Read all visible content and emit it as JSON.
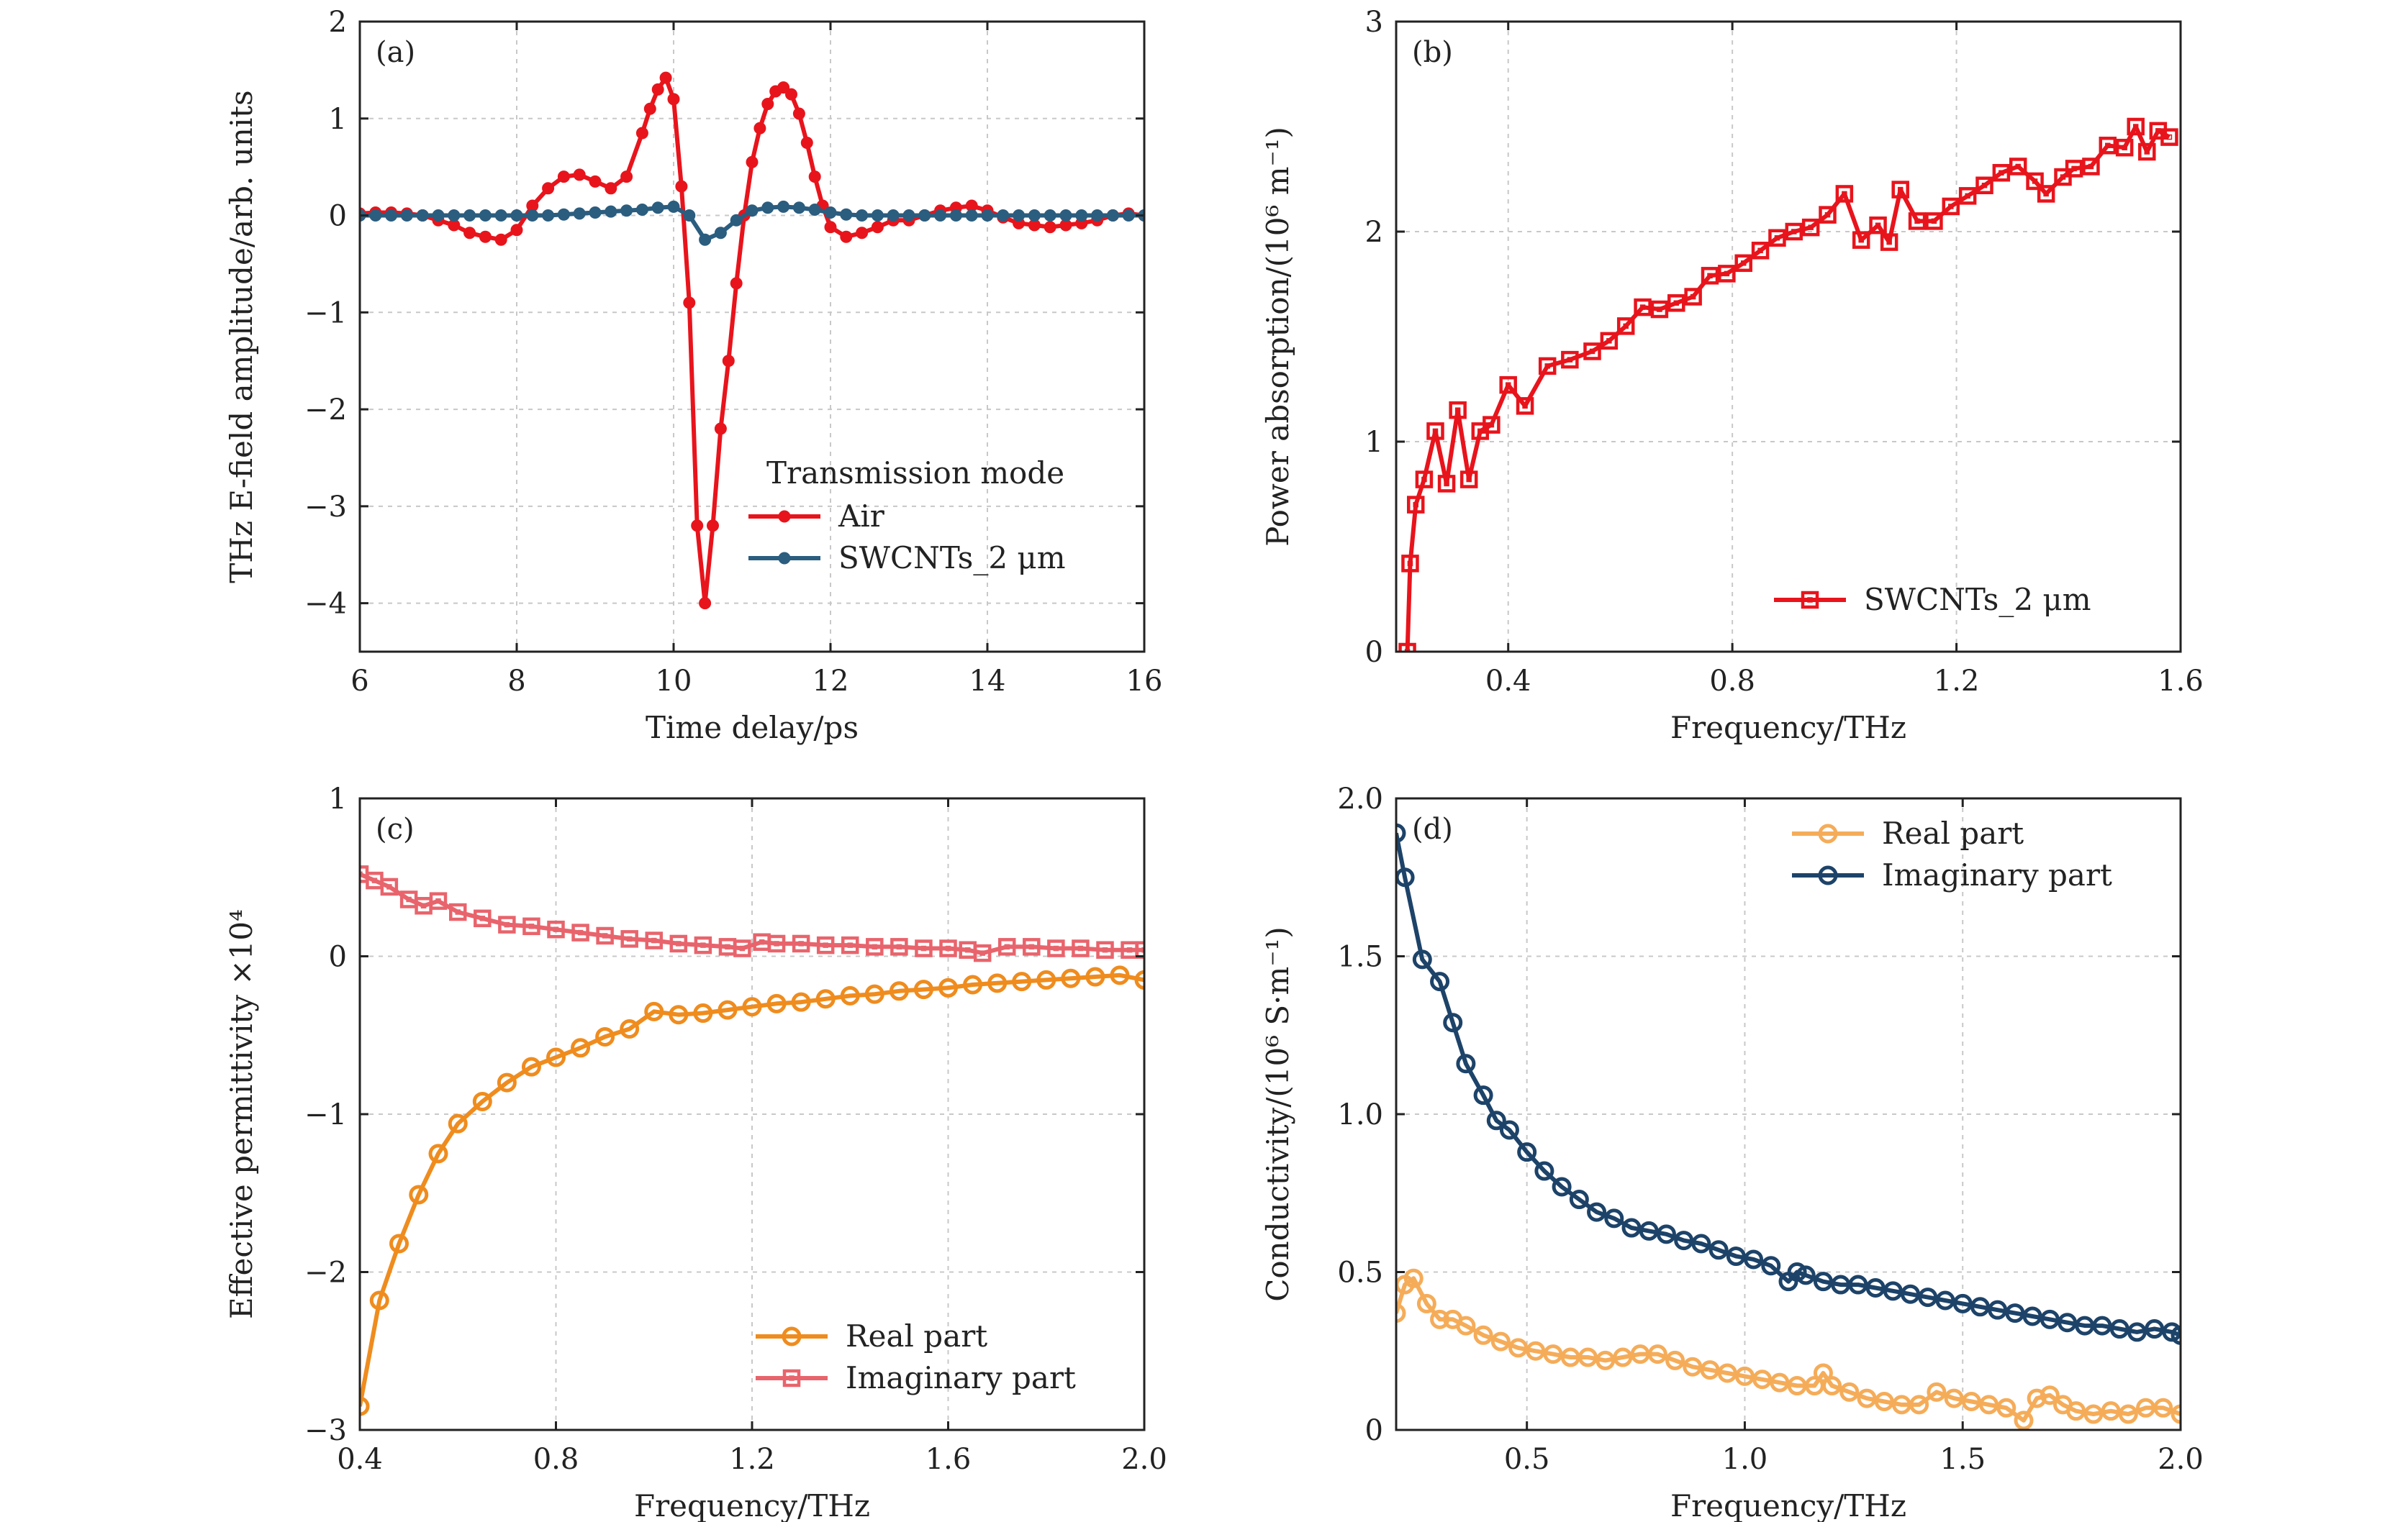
{
  "chart_data": [
    {
      "id": "a",
      "type": "line",
      "panel_label": "(a)",
      "xlabel": "Time delay/ps",
      "ylabel": "THz E-field amplitude/arb. units",
      "xlim": [
        6,
        16
      ],
      "ylim": [
        -4.5,
        2
      ],
      "xticks": [
        6,
        8,
        10,
        12,
        14,
        16
      ],
      "xtick_labels": [
        "6",
        "8",
        "10",
        "12",
        "14",
        "16"
      ],
      "yticks": [
        -4,
        -3,
        -2,
        -1,
        0,
        1,
        2
      ],
      "ytick_labels": [
        "−4",
        "−3",
        "−2",
        "−1",
        "0",
        "1",
        "2"
      ],
      "grid": true,
      "legend": {
        "title": "Transmission mode",
        "position": "bottom-right"
      },
      "series": [
        {
          "name": "Air",
          "color": "#e8141c",
          "marker": "dot",
          "x": [
            6.0,
            6.2,
            6.4,
            6.6,
            6.8,
            7.0,
            7.2,
            7.4,
            7.6,
            7.8,
            8.0,
            8.2,
            8.4,
            8.6,
            8.8,
            9.0,
            9.2,
            9.4,
            9.6,
            9.7,
            9.8,
            9.9,
            10.0,
            10.1,
            10.2,
            10.3,
            10.4,
            10.5,
            10.6,
            10.7,
            10.8,
            10.9,
            11.0,
            11.1,
            11.2,
            11.3,
            11.4,
            11.5,
            11.6,
            11.7,
            11.8,
            11.9,
            12.0,
            12.2,
            12.4,
            12.6,
            12.8,
            13.0,
            13.2,
            13.4,
            13.6,
            13.8,
            14.0,
            14.2,
            14.4,
            14.6,
            14.8,
            15.0,
            15.2,
            15.4,
            15.6,
            15.8,
            16.0
          ],
          "y": [
            0.02,
            0.03,
            0.03,
            0.02,
            0.0,
            -0.05,
            -0.1,
            -0.18,
            -0.22,
            -0.25,
            -0.15,
            0.1,
            0.28,
            0.4,
            0.42,
            0.35,
            0.28,
            0.4,
            0.85,
            1.1,
            1.3,
            1.42,
            1.2,
            0.3,
            -0.9,
            -3.2,
            -4.0,
            -3.2,
            -2.2,
            -1.5,
            -0.7,
            0.0,
            0.55,
            0.9,
            1.15,
            1.28,
            1.32,
            1.25,
            1.05,
            0.75,
            0.4,
            0.1,
            -0.12,
            -0.22,
            -0.18,
            -0.12,
            -0.05,
            -0.05,
            0.0,
            0.05,
            0.08,
            0.1,
            0.05,
            -0.02,
            -0.08,
            -0.1,
            -0.12,
            -0.1,
            -0.08,
            -0.05,
            0.0,
            0.02,
            0.0
          ]
        },
        {
          "name": "SWCNTs_2 μm",
          "color": "#2b5d7f",
          "marker": "dot",
          "x": [
            6.0,
            6.2,
            6.4,
            6.6,
            6.8,
            7.0,
            7.2,
            7.4,
            7.6,
            7.8,
            8.0,
            8.2,
            8.4,
            8.6,
            8.8,
            9.0,
            9.2,
            9.4,
            9.6,
            9.8,
            10.0,
            10.2,
            10.4,
            10.6,
            10.8,
            11.0,
            11.2,
            11.4,
            11.6,
            11.8,
            12.0,
            12.2,
            12.4,
            12.6,
            12.8,
            13.0,
            13.2,
            13.4,
            13.6,
            13.8,
            14.0,
            14.2,
            14.4,
            14.6,
            14.8,
            15.0,
            15.2,
            15.4,
            15.6,
            15.8,
            16.0
          ],
          "y": [
            0.0,
            0.0,
            0.0,
            0.0,
            0.0,
            0.0,
            0.0,
            0.0,
            0.0,
            0.0,
            0.0,
            0.0,
            0.0,
            0.01,
            0.02,
            0.03,
            0.04,
            0.05,
            0.06,
            0.08,
            0.09,
            0.0,
            -0.25,
            -0.18,
            -0.05,
            0.05,
            0.08,
            0.09,
            0.08,
            0.06,
            0.03,
            0.01,
            0.0,
            0.0,
            0.0,
            0.0,
            0.0,
            0.0,
            0.0,
            0.0,
            0.0,
            0.0,
            0.0,
            0.0,
            0.0,
            0.0,
            0.0,
            0.0,
            0.0,
            0.0,
            0.0
          ]
        }
      ]
    },
    {
      "id": "b",
      "type": "line",
      "panel_label": "(b)",
      "xlabel": "Frequency/THz",
      "ylabel": "Power absorption/(10⁶ m⁻¹)",
      "xlim": [
        0.2,
        1.6
      ],
      "ylim": [
        0,
        3
      ],
      "xticks": [
        0.4,
        0.8,
        1.2,
        1.6
      ],
      "xtick_labels": [
        "0.4",
        "0.8",
        "1.2",
        "1.6"
      ],
      "yticks": [
        0,
        1,
        2,
        3
      ],
      "ytick_labels": [
        "0",
        "1",
        "2",
        "3"
      ],
      "grid": true,
      "legend": {
        "position": "bottom-right"
      },
      "series": [
        {
          "name": "SWCNTs_2 μm",
          "color": "#e8141c",
          "marker": "square",
          "x": [
            0.22,
            0.225,
            0.235,
            0.25,
            0.27,
            0.29,
            0.31,
            0.33,
            0.35,
            0.37,
            0.4,
            0.43,
            0.47,
            0.51,
            0.55,
            0.58,
            0.61,
            0.64,
            0.67,
            0.7,
            0.73,
            0.76,
            0.79,
            0.82,
            0.85,
            0.88,
            0.91,
            0.94,
            0.97,
            1.0,
            1.03,
            1.06,
            1.08,
            1.1,
            1.13,
            1.16,
            1.19,
            1.22,
            1.25,
            1.28,
            1.31,
            1.34,
            1.36,
            1.39,
            1.41,
            1.44,
            1.47,
            1.5,
            1.52,
            1.54,
            1.56,
            1.58
          ],
          "y": [
            0.0,
            0.42,
            0.7,
            0.82,
            1.05,
            0.8,
            1.15,
            0.82,
            1.05,
            1.08,
            1.27,
            1.17,
            1.36,
            1.39,
            1.43,
            1.48,
            1.55,
            1.64,
            1.63,
            1.66,
            1.69,
            1.79,
            1.8,
            1.85,
            1.91,
            1.97,
            2.0,
            2.02,
            2.08,
            2.18,
            1.96,
            2.03,
            1.95,
            2.2,
            2.05,
            2.05,
            2.12,
            2.17,
            2.22,
            2.28,
            2.31,
            2.24,
            2.18,
            2.26,
            2.3,
            2.31,
            2.41,
            2.4,
            2.5,
            2.38,
            2.48,
            2.45
          ]
        }
      ]
    },
    {
      "id": "c",
      "type": "line",
      "panel_label": "(c)",
      "xlabel": "Frequency/THz",
      "ylabel": "Effective permittivity ×10⁴",
      "xlim": [
        0.4,
        2.0
      ],
      "ylim": [
        -3,
        1
      ],
      "xticks": [
        0.4,
        0.8,
        1.2,
        1.6,
        2.0
      ],
      "xtick_labels": [
        "0.4",
        "0.8",
        "1.2",
        "1.6",
        "2.0"
      ],
      "yticks": [
        -3,
        -2,
        -1,
        0,
        1
      ],
      "ytick_labels": [
        "−3",
        "−2",
        "−1",
        "0",
        "1"
      ],
      "grid": true,
      "legend": {
        "position": "bottom-right"
      },
      "series": [
        {
          "name": "Real part",
          "color": "#ef8c1e",
          "marker": "circle",
          "x": [
            0.4,
            0.44,
            0.48,
            0.52,
            0.56,
            0.6,
            0.65,
            0.7,
            0.75,
            0.8,
            0.85,
            0.9,
            0.95,
            1.0,
            1.05,
            1.1,
            1.15,
            1.2,
            1.25,
            1.3,
            1.35,
            1.4,
            1.45,
            1.5,
            1.55,
            1.6,
            1.65,
            1.7,
            1.75,
            1.8,
            1.85,
            1.9,
            1.95,
            2.0
          ],
          "y": [
            -2.85,
            -2.18,
            -1.82,
            -1.51,
            -1.25,
            -1.06,
            -0.92,
            -0.8,
            -0.7,
            -0.64,
            -0.58,
            -0.51,
            -0.46,
            -0.35,
            -0.37,
            -0.36,
            -0.34,
            -0.32,
            -0.3,
            -0.29,
            -0.27,
            -0.25,
            -0.24,
            -0.22,
            -0.21,
            -0.2,
            -0.18,
            -0.17,
            -0.16,
            -0.15,
            -0.14,
            -0.13,
            -0.12,
            -0.15
          ]
        },
        {
          "name": "Imaginary part",
          "color": "#e8646c",
          "marker": "square",
          "x": [
            0.4,
            0.43,
            0.46,
            0.5,
            0.53,
            0.56,
            0.6,
            0.65,
            0.7,
            0.75,
            0.8,
            0.85,
            0.9,
            0.95,
            1.0,
            1.05,
            1.1,
            1.15,
            1.18,
            1.22,
            1.25,
            1.3,
            1.35,
            1.4,
            1.45,
            1.5,
            1.55,
            1.6,
            1.64,
            1.67,
            1.72,
            1.77,
            1.82,
            1.87,
            1.92,
            1.97,
            2.0
          ],
          "y": [
            0.52,
            0.48,
            0.44,
            0.36,
            0.32,
            0.35,
            0.28,
            0.24,
            0.2,
            0.19,
            0.17,
            0.15,
            0.13,
            0.11,
            0.1,
            0.08,
            0.07,
            0.06,
            0.05,
            0.09,
            0.08,
            0.08,
            0.07,
            0.07,
            0.06,
            0.06,
            0.05,
            0.05,
            0.04,
            0.02,
            0.06,
            0.06,
            0.05,
            0.05,
            0.04,
            0.04,
            0.04
          ]
        }
      ]
    },
    {
      "id": "d",
      "type": "line",
      "panel_label": "(d)",
      "xlabel": "Frequency/THz",
      "ylabel": "Conductivity/(10⁶ S·m⁻¹)",
      "xlim": [
        0.2,
        2.0
      ],
      "ylim": [
        0,
        2.0
      ],
      "xticks": [
        0.5,
        1.0,
        1.5,
        2.0
      ],
      "xtick_labels": [
        "0.5",
        "1.0",
        "1.5",
        "2.0"
      ],
      "yticks": [
        0,
        0.5,
        1.0,
        1.5,
        2.0
      ],
      "ytick_labels": [
        "0",
        "0.5",
        "1.0",
        "1.5",
        "2.0"
      ],
      "grid": true,
      "legend": {
        "position": "top-right"
      },
      "series": [
        {
          "name": "Real part",
          "color": "#f5ac59",
          "marker": "circle",
          "x": [
            0.2,
            0.22,
            0.24,
            0.27,
            0.3,
            0.33,
            0.36,
            0.4,
            0.44,
            0.48,
            0.52,
            0.56,
            0.6,
            0.64,
            0.68,
            0.72,
            0.76,
            0.8,
            0.84,
            0.88,
            0.92,
            0.96,
            1.0,
            1.04,
            1.08,
            1.12,
            1.16,
            1.18,
            1.2,
            1.24,
            1.28,
            1.32,
            1.36,
            1.4,
            1.44,
            1.48,
            1.52,
            1.56,
            1.6,
            1.64,
            1.67,
            1.7,
            1.73,
            1.76,
            1.8,
            1.84,
            1.88,
            1.92,
            1.96,
            2.0
          ],
          "y": [
            0.37,
            0.46,
            0.48,
            0.4,
            0.35,
            0.35,
            0.33,
            0.3,
            0.28,
            0.26,
            0.25,
            0.24,
            0.23,
            0.23,
            0.22,
            0.23,
            0.24,
            0.24,
            0.22,
            0.2,
            0.19,
            0.18,
            0.17,
            0.16,
            0.15,
            0.14,
            0.14,
            0.18,
            0.14,
            0.12,
            0.1,
            0.09,
            0.08,
            0.08,
            0.12,
            0.1,
            0.09,
            0.08,
            0.07,
            0.03,
            0.1,
            0.11,
            0.08,
            0.06,
            0.05,
            0.06,
            0.05,
            0.07,
            0.07,
            0.05
          ]
        },
        {
          "name": "Imaginary part",
          "color": "#1d4369",
          "marker": "circle",
          "x": [
            0.2,
            0.22,
            0.26,
            0.3,
            0.33,
            0.36,
            0.4,
            0.43,
            0.46,
            0.5,
            0.54,
            0.58,
            0.62,
            0.66,
            0.7,
            0.74,
            0.78,
            0.82,
            0.86,
            0.9,
            0.94,
            0.98,
            1.02,
            1.06,
            1.1,
            1.12,
            1.14,
            1.18,
            1.22,
            1.26,
            1.3,
            1.34,
            1.38,
            1.42,
            1.46,
            1.5,
            1.54,
            1.58,
            1.62,
            1.66,
            1.7,
            1.74,
            1.78,
            1.82,
            1.86,
            1.9,
            1.94,
            1.98,
            2.0
          ],
          "y": [
            1.89,
            1.75,
            1.49,
            1.42,
            1.29,
            1.16,
            1.06,
            0.98,
            0.95,
            0.88,
            0.82,
            0.77,
            0.73,
            0.69,
            0.67,
            0.64,
            0.63,
            0.62,
            0.6,
            0.59,
            0.57,
            0.55,
            0.54,
            0.52,
            0.47,
            0.5,
            0.49,
            0.47,
            0.46,
            0.46,
            0.45,
            0.44,
            0.43,
            0.42,
            0.41,
            0.4,
            0.39,
            0.38,
            0.37,
            0.36,
            0.35,
            0.34,
            0.33,
            0.33,
            0.32,
            0.31,
            0.32,
            0.31,
            0.3
          ]
        }
      ]
    }
  ]
}
